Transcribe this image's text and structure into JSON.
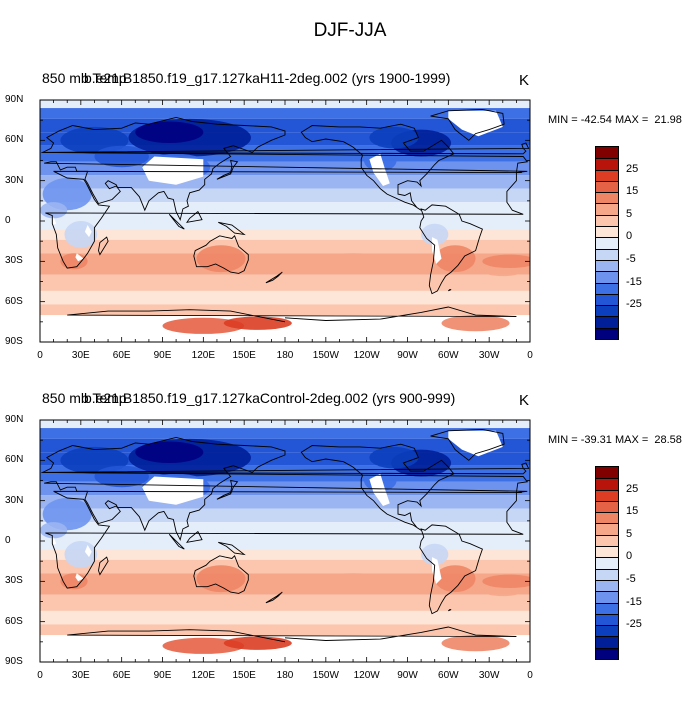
{
  "title": "DJF-JJA",
  "colorbar": {
    "colors": [
      "#00007f",
      "#001f99",
      "#0b3fbd",
      "#2356d6",
      "#3d6fe5",
      "#6d93ef",
      "#9bb5f2",
      "#c6d6f5",
      "#e4edfa",
      "#fde5d8",
      "#fbc6ad",
      "#f6a789",
      "#ee8666",
      "#e66246",
      "#dc3d23",
      "#b8140b",
      "#800000"
    ],
    "tick_labels": [
      "25",
      "15",
      "5",
      "0",
      "-5",
      "-15",
      "-25"
    ]
  },
  "axes": {
    "lat_labels": [
      "90N",
      "60N",
      "30N",
      "0",
      "30S",
      "60S",
      "90S"
    ],
    "lon_labels": [
      "0",
      "30E",
      "60E",
      "90E",
      "120E",
      "150E",
      "180",
      "150W",
      "120W",
      "90W",
      "60W",
      "30W",
      "0"
    ]
  },
  "panels": [
    {
      "variable": "850 mb Temp",
      "case": "b.e21.B1850.f19_g17.127kaH11-2deg.002 (yrs 1900-1999)",
      "units": "K",
      "min_max": "MIN = -42.54 MAX =  21.98"
    },
    {
      "variable": "850 mb Temp",
      "case": "b.e21.B1850.f19_g17.127kaControl-2deg.002 (yrs 900-999)",
      "units": "K",
      "min_max": "MIN = -39.31 MAX =  28.58"
    }
  ]
}
